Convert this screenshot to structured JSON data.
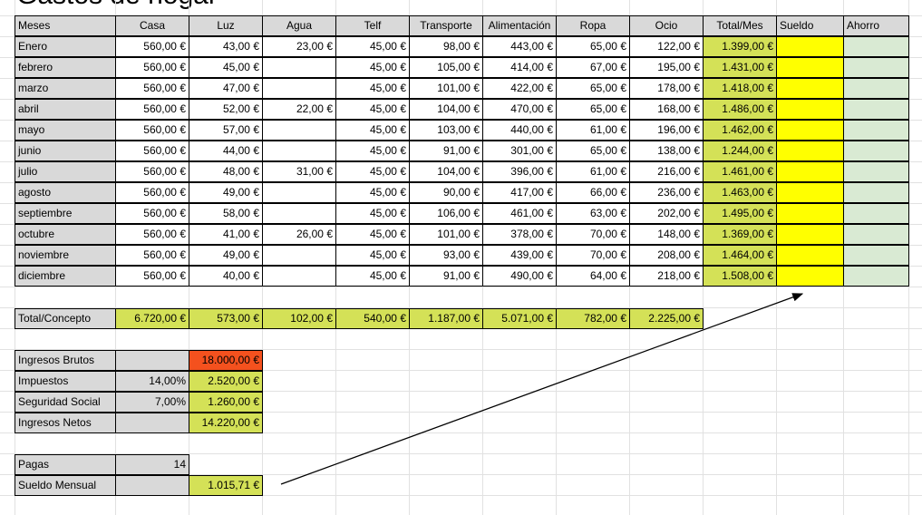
{
  "title": "Gastos de hogar",
  "headers": [
    "Meses",
    "Casa",
    "Luz",
    "Agua",
    "Telf",
    "Transporte",
    "Alimentación",
    "Ropa",
    "Ocio",
    "Total/Mes",
    "Sueldo",
    "Ahorro"
  ],
  "rows": [
    {
      "month": "Enero",
      "casa": "560,00 €",
      "luz": "43,00 €",
      "agua": "23,00 €",
      "telf": "45,00 €",
      "transporte": "98,00 €",
      "alimentacion": "443,00 €",
      "ropa": "65,00 €",
      "ocio": "122,00 €",
      "total": "1.399,00 €"
    },
    {
      "month": "febrero",
      "casa": "560,00 €",
      "luz": "45,00 €",
      "agua": "",
      "telf": "45,00 €",
      "transporte": "105,00 €",
      "alimentacion": "414,00 €",
      "ropa": "67,00 €",
      "ocio": "195,00 €",
      "total": "1.431,00 €"
    },
    {
      "month": "marzo",
      "casa": "560,00 €",
      "luz": "47,00 €",
      "agua": "",
      "telf": "45,00 €",
      "transporte": "101,00 €",
      "alimentacion": "422,00 €",
      "ropa": "65,00 €",
      "ocio": "178,00 €",
      "total": "1.418,00 €"
    },
    {
      "month": "abril",
      "casa": "560,00 €",
      "luz": "52,00 €",
      "agua": "22,00 €",
      "telf": "45,00 €",
      "transporte": "104,00 €",
      "alimentacion": "470,00 €",
      "ropa": "65,00 €",
      "ocio": "168,00 €",
      "total": "1.486,00 €"
    },
    {
      "month": "mayo",
      "casa": "560,00 €",
      "luz": "57,00 €",
      "agua": "",
      "telf": "45,00 €",
      "transporte": "103,00 €",
      "alimentacion": "440,00 €",
      "ropa": "61,00 €",
      "ocio": "196,00 €",
      "total": "1.462,00 €"
    },
    {
      "month": "junio",
      "casa": "560,00 €",
      "luz": "44,00 €",
      "agua": "",
      "telf": "45,00 €",
      "transporte": "91,00 €",
      "alimentacion": "301,00 €",
      "ropa": "65,00 €",
      "ocio": "138,00 €",
      "total": "1.244,00 €"
    },
    {
      "month": "julio",
      "casa": "560,00 €",
      "luz": "48,00 €",
      "agua": "31,00 €",
      "telf": "45,00 €",
      "transporte": "104,00 €",
      "alimentacion": "396,00 €",
      "ropa": "61,00 €",
      "ocio": "216,00 €",
      "total": "1.461,00 €"
    },
    {
      "month": "agosto",
      "casa": "560,00 €",
      "luz": "49,00 €",
      "agua": "",
      "telf": "45,00 €",
      "transporte": "90,00 €",
      "alimentacion": "417,00 €",
      "ropa": "66,00 €",
      "ocio": "236,00 €",
      "total": "1.463,00 €"
    },
    {
      "month": "septiembre",
      "casa": "560,00 €",
      "luz": "58,00 €",
      "agua": "",
      "telf": "45,00 €",
      "transporte": "106,00 €",
      "alimentacion": "461,00 €",
      "ropa": "63,00 €",
      "ocio": "202,00 €",
      "total": "1.495,00 €"
    },
    {
      "month": "octubre",
      "casa": "560,00 €",
      "luz": "41,00 €",
      "agua": "26,00 €",
      "telf": "45,00 €",
      "transporte": "101,00 €",
      "alimentacion": "378,00 €",
      "ropa": "70,00 €",
      "ocio": "148,00 €",
      "total": "1.369,00 €"
    },
    {
      "month": "noviembre",
      "casa": "560,00 €",
      "luz": "49,00 €",
      "agua": "",
      "telf": "45,00 €",
      "transporte": "93,00 €",
      "alimentacion": "439,00 €",
      "ropa": "70,00 €",
      "ocio": "208,00 €",
      "total": "1.464,00 €"
    },
    {
      "month": "diciembre",
      "casa": "560,00 €",
      "luz": "40,00 €",
      "agua": "",
      "telf": "45,00 €",
      "transporte": "91,00 €",
      "alimentacion": "490,00 €",
      "ropa": "64,00 €",
      "ocio": "218,00 €",
      "total": "1.508,00 €"
    }
  ],
  "totals": {
    "label": "Total/Concepto",
    "values": [
      "6.720,00 €",
      "573,00 €",
      "102,00 €",
      "540,00 €",
      "1.187,00 €",
      "5.071,00 €",
      "782,00 €",
      "2.225,00 €"
    ]
  },
  "income": {
    "brutos_label": "Ingresos Brutos",
    "brutos_value": "18.000,00 €",
    "impuestos_label": "Impuestos",
    "impuestos_rate": "14,00%",
    "impuestos_value": "2.520,00 €",
    "ss_label": "Seguridad Social",
    "ss_rate": "7,00%",
    "ss_value": "1.260,00 €",
    "netos_label": "Ingresos Netos",
    "netos_value": "14.220,00 €",
    "pagas_label": "Pagas",
    "pagas_value": "14",
    "sueldo_label": "Sueldo Mensual",
    "sueldo_value": "1.015,71 €"
  },
  "colors": {
    "header_gray": "#d9d9d9",
    "total_green": "#d4e157",
    "sueldo_yellow": "#ffff00",
    "ahorro_green": "#d9ead3",
    "brutos_red": "#f4511e"
  }
}
